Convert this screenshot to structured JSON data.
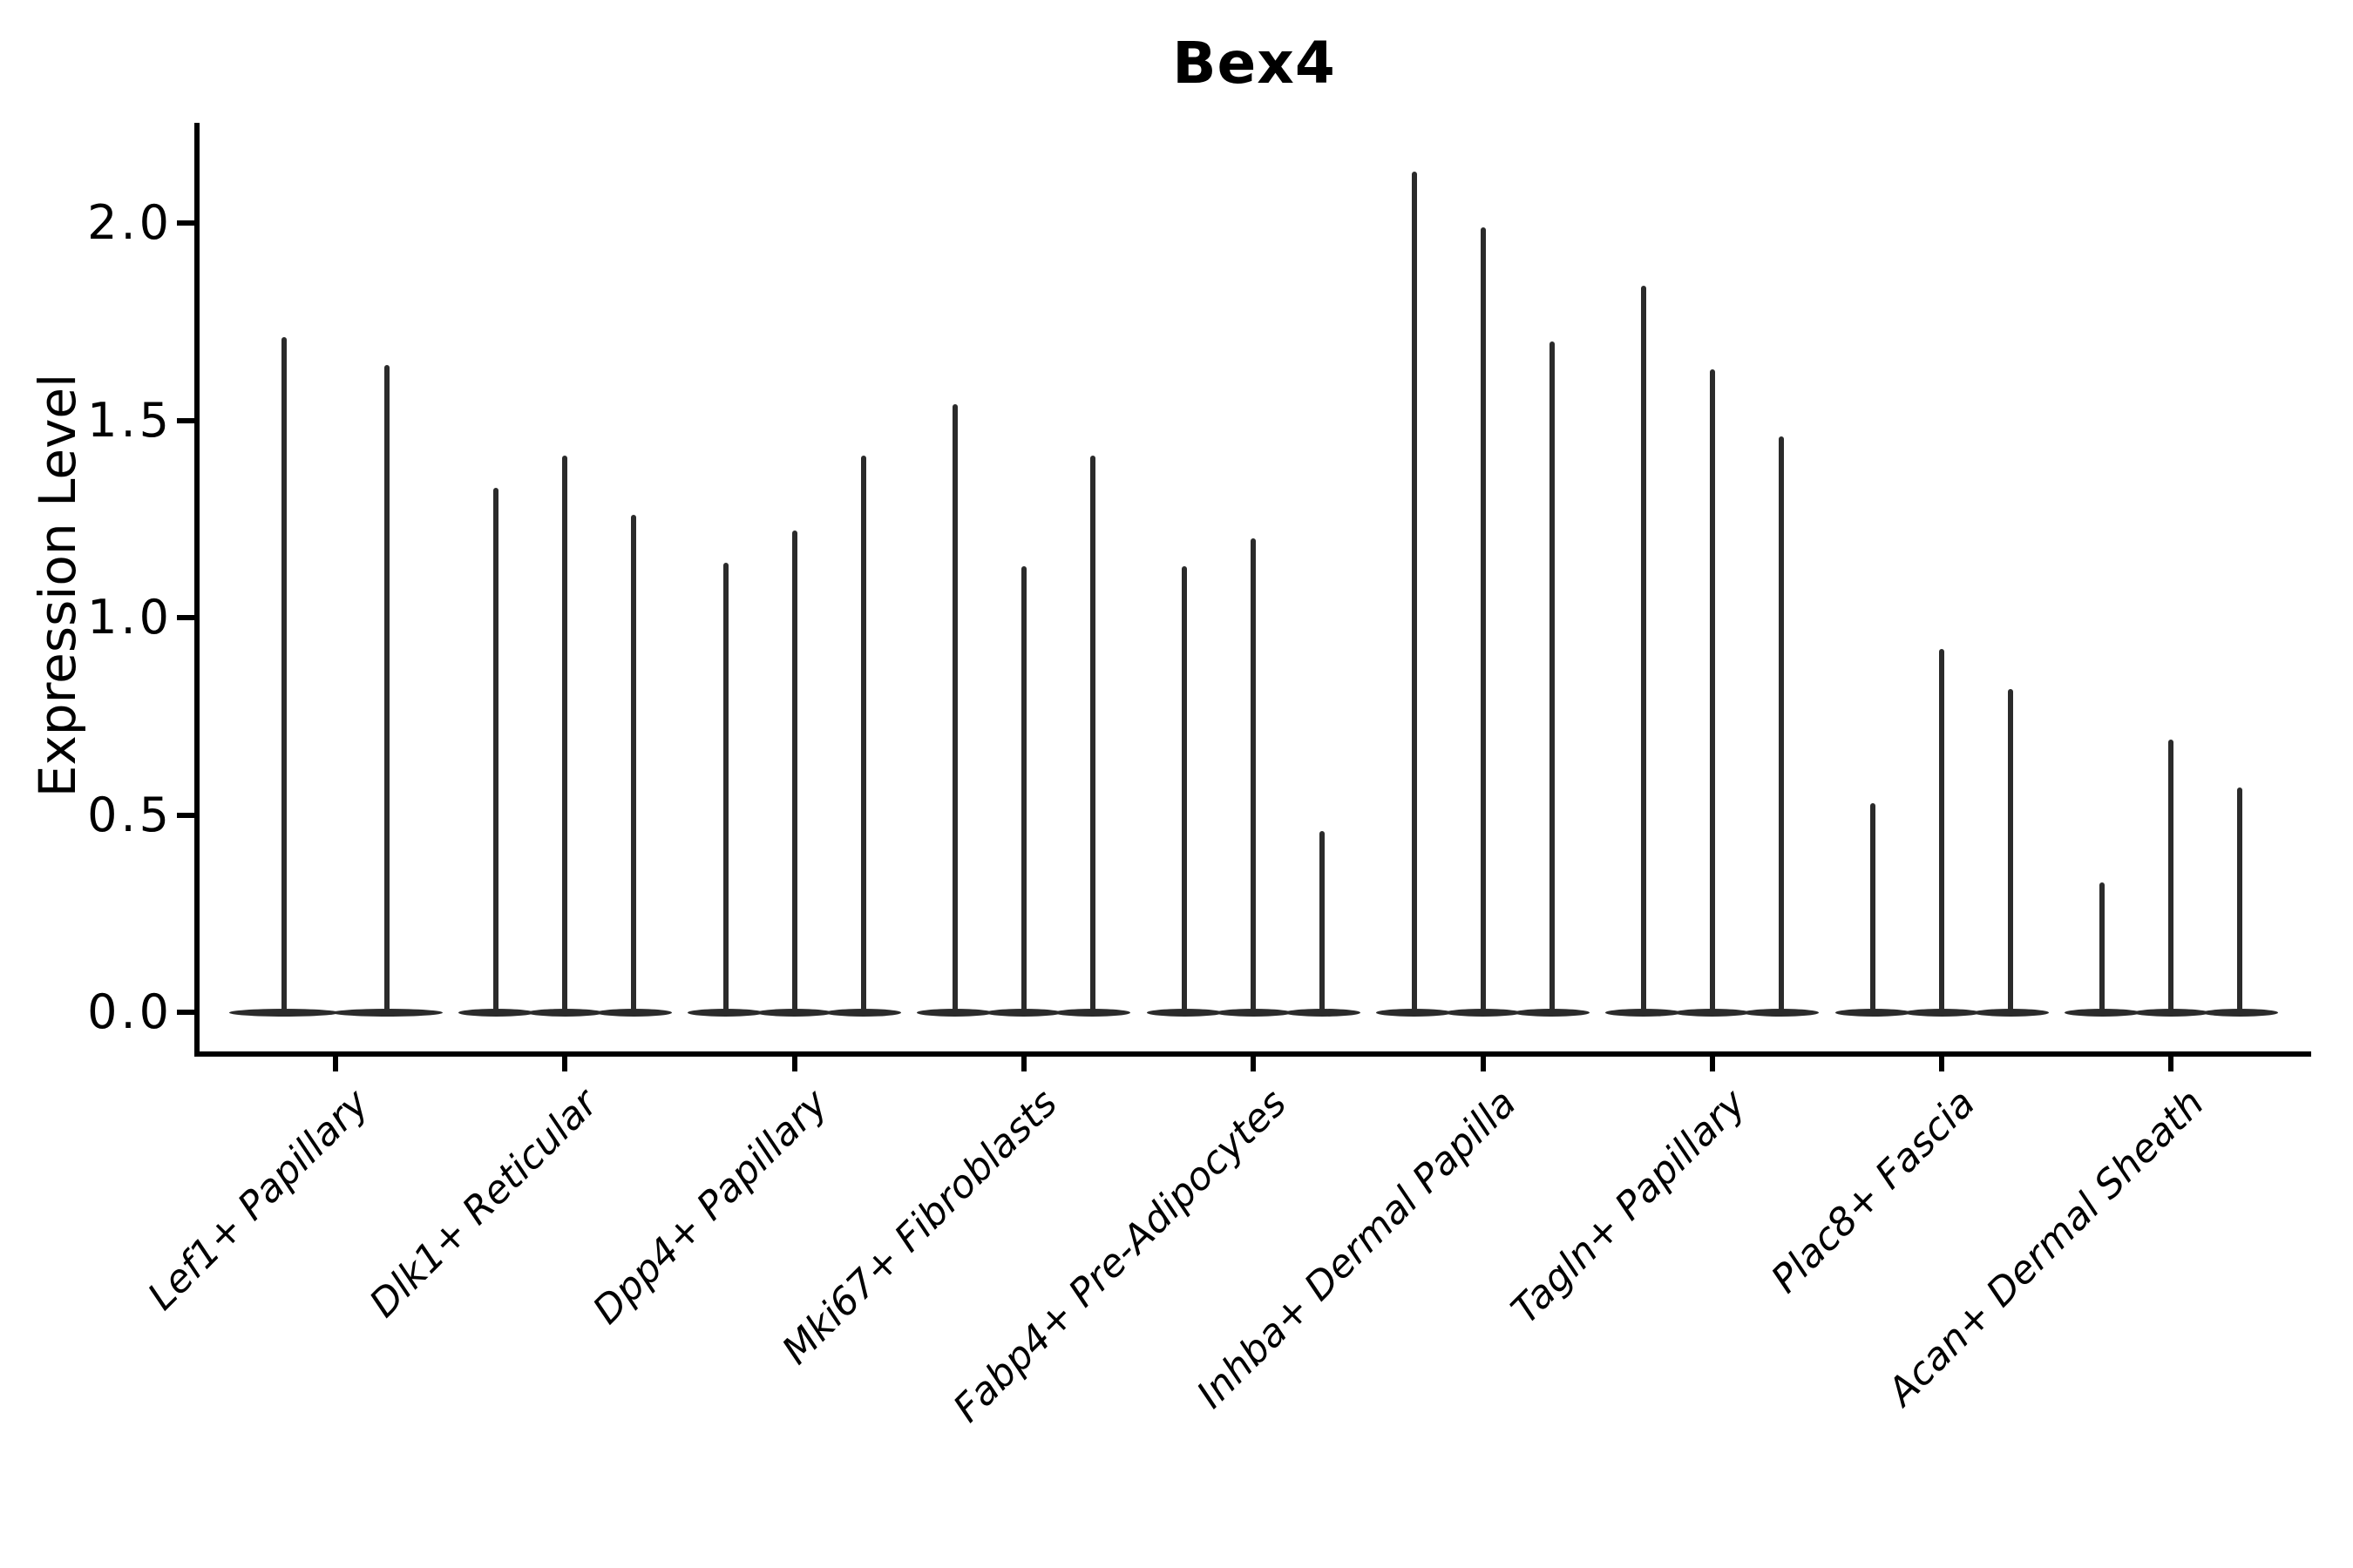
{
  "chart_data": {
    "type": "violin",
    "title": "Bex4",
    "ylabel": "Expression Level",
    "xlabel": "",
    "ylim": [
      0,
      2.26
    ],
    "grid": false,
    "legend": null,
    "base_value": 0.0,
    "yticks": [
      {
        "label": "0.0",
        "value": 0.0
      },
      {
        "label": "0.5",
        "value": 0.5
      },
      {
        "label": "1.0",
        "value": 1.0
      },
      {
        "label": "1.5",
        "value": 1.5
      },
      {
        "label": "2.0",
        "value": 2.0
      }
    ],
    "categories": [
      "Lef1+ Papillary",
      "Dlk1+ Reticular",
      "Dpp4+ Papillary",
      "Mki67+ Fibroblasts",
      "Fabp4+ Pre-Adipocytes",
      "Inhba+ Dermal Papilla",
      "Tagln+ Papillary",
      "Plac8+ Fascia",
      "Acan+ Dermal Sheath"
    ],
    "groups": [
      {
        "category": "Lef1+ Papillary",
        "violin_max_values": [
          1.71,
          1.64
        ]
      },
      {
        "category": "Dlk1+ Reticular",
        "violin_max_values": [
          1.33,
          1.41,
          1.26
        ]
      },
      {
        "category": "Dpp4+ Papillary",
        "violin_max_values": [
          1.14,
          1.22,
          1.41
        ]
      },
      {
        "category": "Mki67+ Fibroblasts",
        "violin_max_values": [
          1.54,
          1.13,
          1.41
        ]
      },
      {
        "category": "Fabp4+ Pre-Adipocytes",
        "violin_max_values": [
          1.13,
          1.2,
          0.46
        ]
      },
      {
        "category": "Inhba+ Dermal Papilla",
        "violin_max_values": [
          2.13,
          1.99,
          1.7
        ]
      },
      {
        "category": "Tagln+ Papillary",
        "violin_max_values": [
          1.84,
          1.63,
          1.46
        ]
      },
      {
        "category": "Plac8+ Fascia",
        "violin_max_values": [
          0.53,
          0.92,
          0.82
        ]
      },
      {
        "category": "Acan+ Dermal Sheath",
        "violin_max_values": [
          0.33,
          0.69,
          0.57
        ]
      }
    ],
    "colors": {
      "violin": "#2b2b2b",
      "axis": "#000000",
      "text": "#000000",
      "background": "#ffffff"
    }
  }
}
